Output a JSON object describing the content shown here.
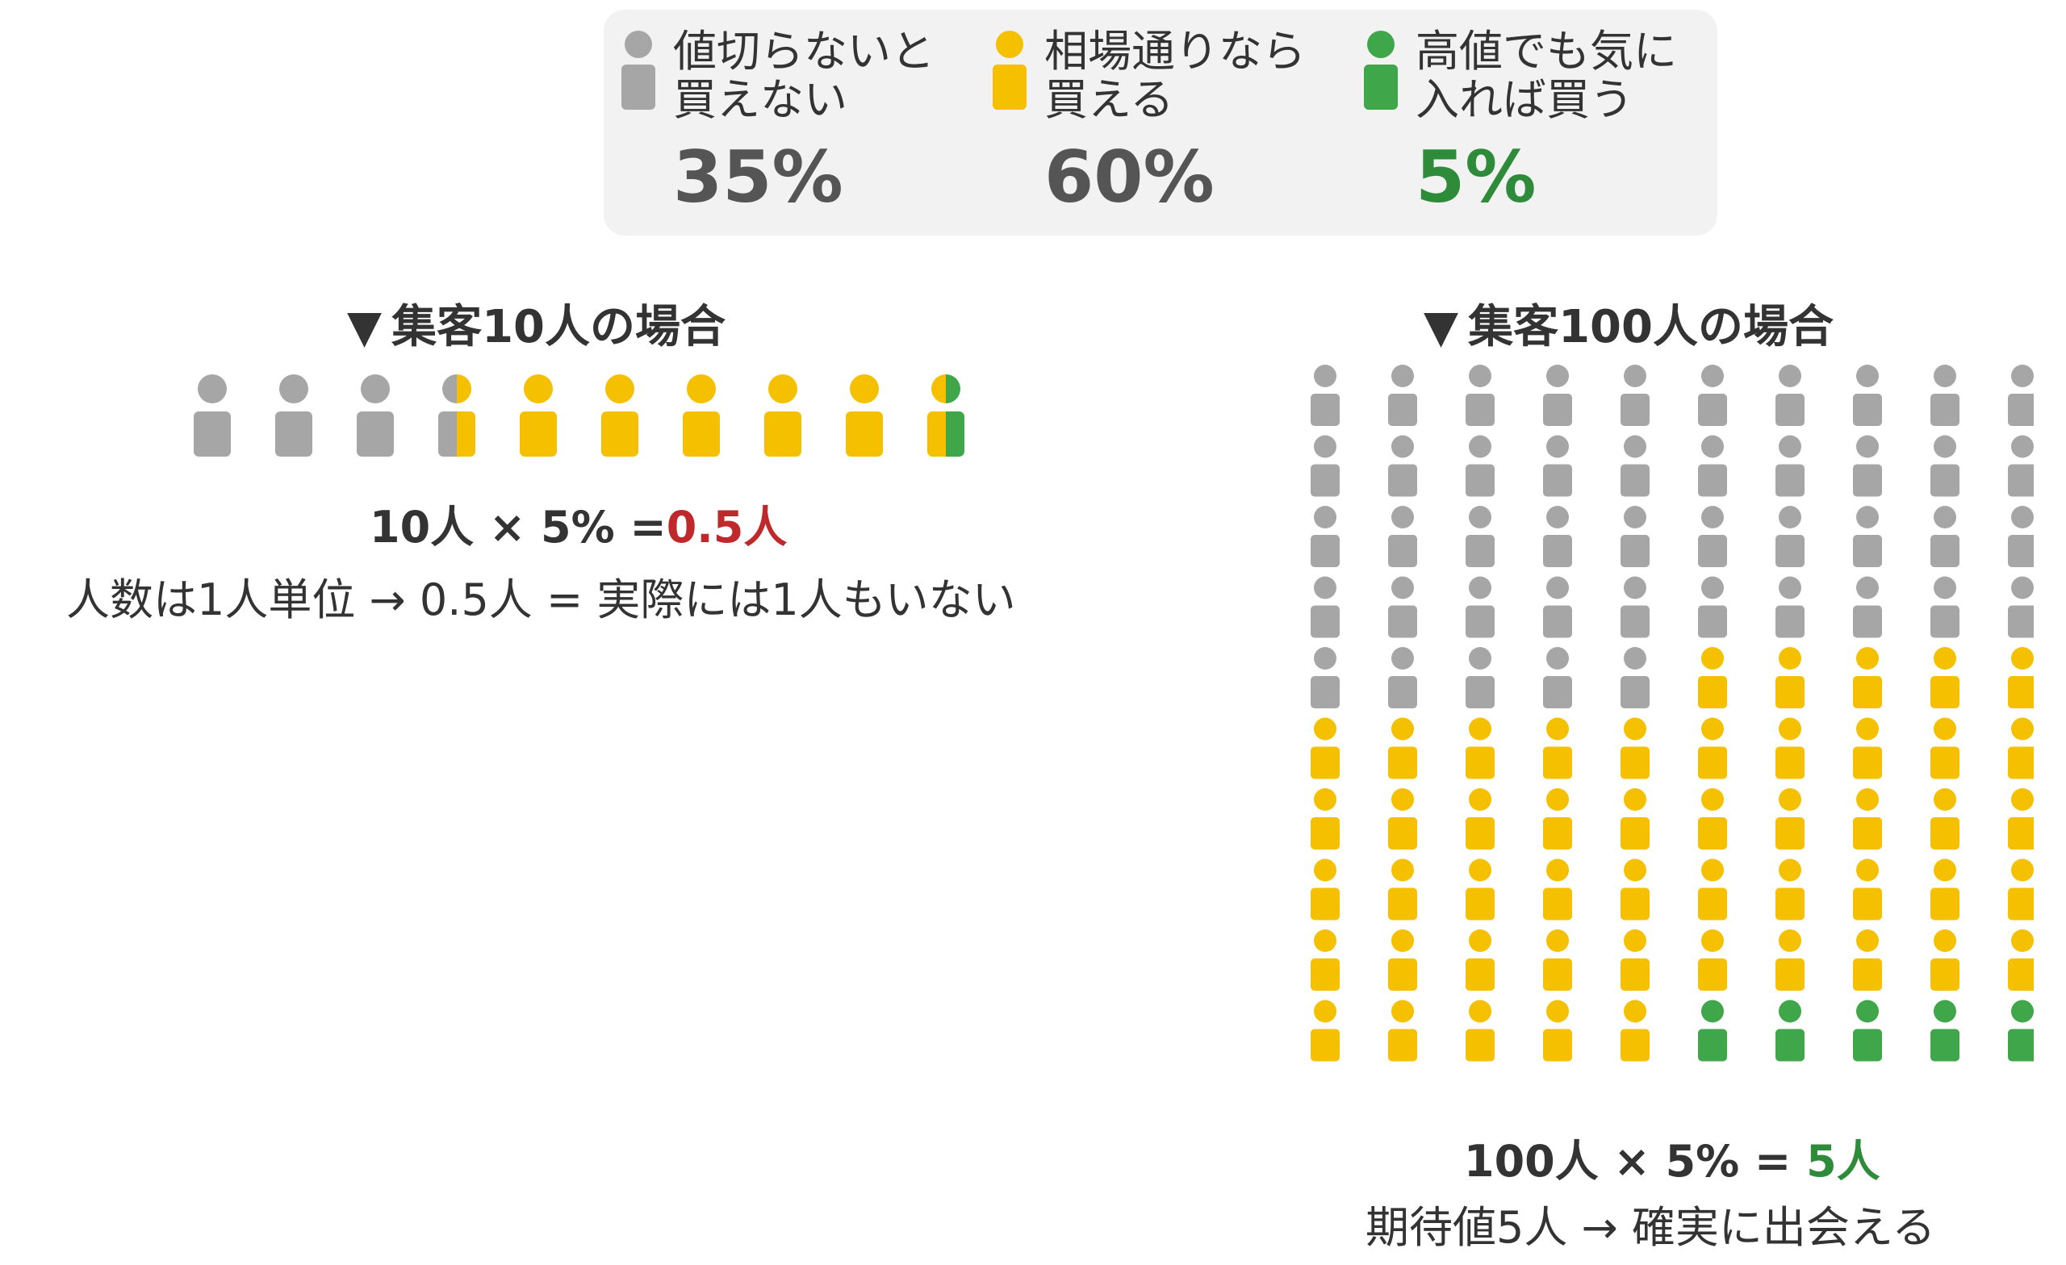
{
  "legend": {
    "items": [
      {
        "line1": "値切らないと",
        "line2": "買えない",
        "pct": "35%",
        "color": "#a6a6a6"
      },
      {
        "line1": "相場通りなら",
        "line2": "買える",
        "pct": "60%",
        "color": "#f5c000"
      },
      {
        "line1": "高値でも気に",
        "line2": "入れば買う",
        "pct": "5%",
        "color": "#3fa64a"
      }
    ]
  },
  "colors": {
    "gray": "#a6a6a6",
    "yellow": "#f5c000",
    "green": "#3fa64a"
  },
  "left": {
    "triangle": "▼",
    "title": "集客10人の場合",
    "formula_main": "10人 × 5% =",
    "formula_result": "0.5人",
    "note": "人数は1人単位 → 0.5人 = 実際には1人もいない",
    "people": [
      "gray",
      "gray",
      "gray",
      "gray-yellow",
      "yellow",
      "yellow",
      "yellow",
      "yellow",
      "yellow",
      "yellow-green"
    ]
  },
  "right": {
    "triangle": "▼",
    "title": "集客100人の場合",
    "formula_main": "100人 × 5% =",
    "formula_result": "5人",
    "note": "期待値5人 → 確実に出会える",
    "grid": {
      "columns": 10,
      "rows": 10,
      "gray_per_col": [
        5,
        5,
        5,
        5,
        5,
        4,
        4,
        4,
        4,
        4
      ],
      "green_per_col": [
        0,
        0,
        0,
        0,
        0,
        1,
        1,
        1,
        1,
        1
      ]
    }
  }
}
